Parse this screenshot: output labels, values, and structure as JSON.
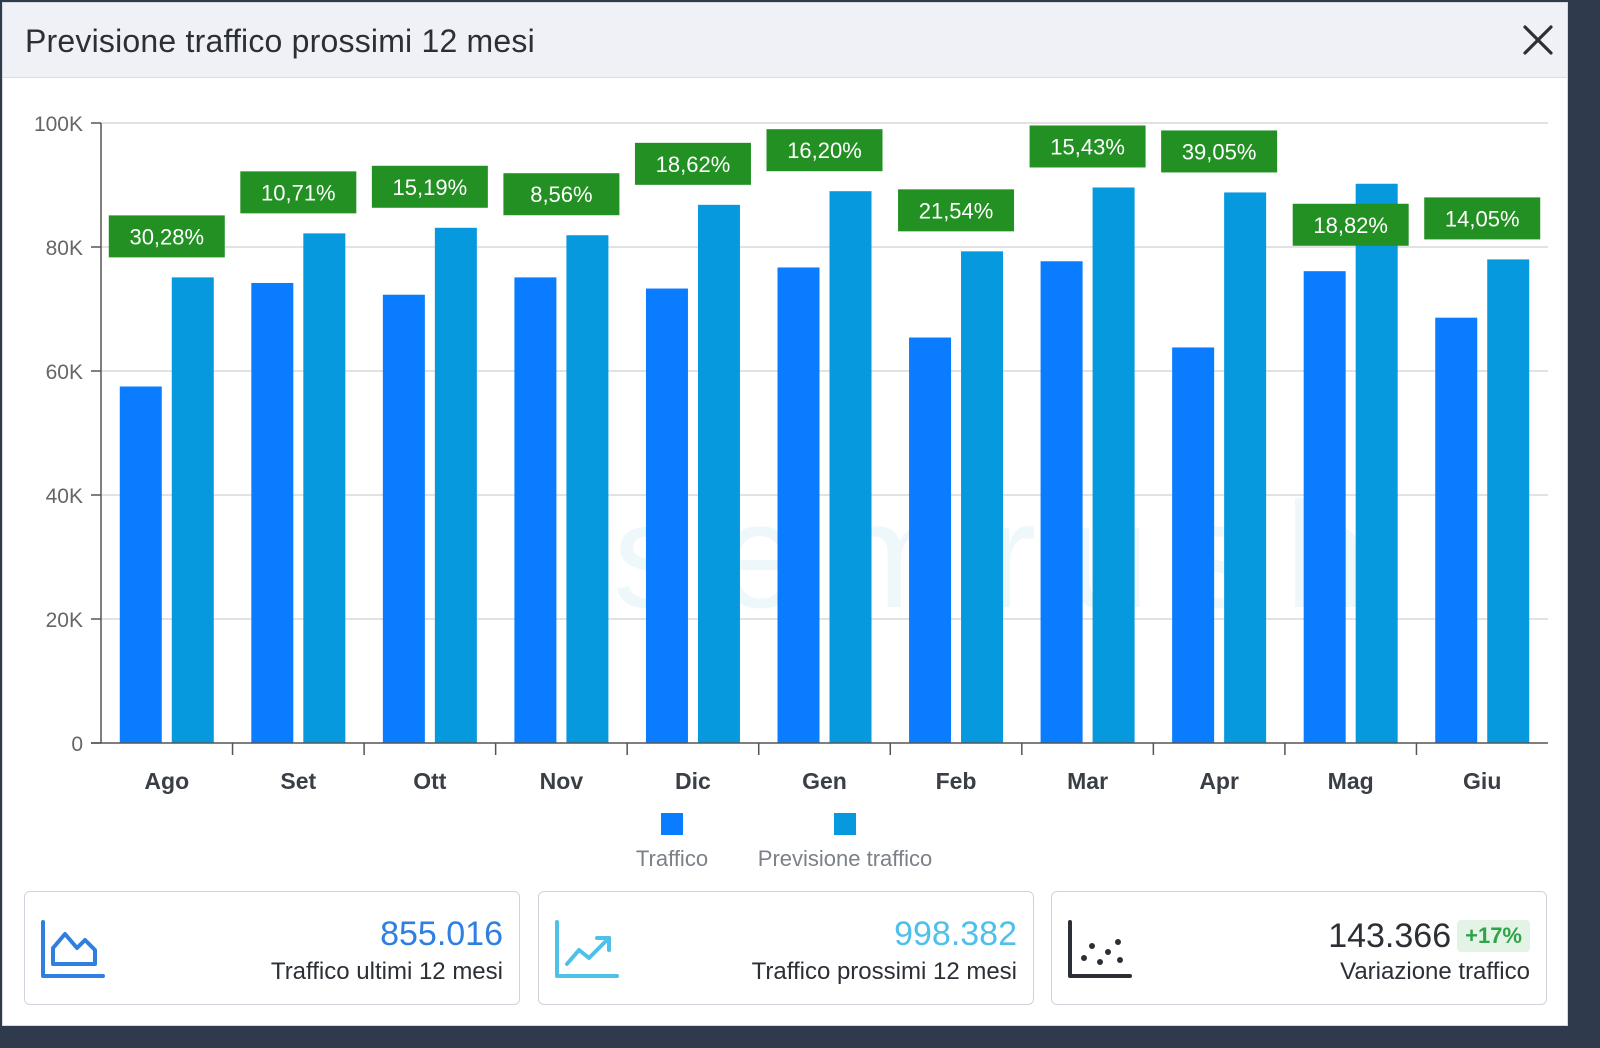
{
  "modal": {
    "title": "Previsione traffico prossimi 12 mesi",
    "close_icon": "close-icon"
  },
  "colors": {
    "traffic": "#0a7cff",
    "forecast": "#0699dd",
    "badge_bg": "#239023",
    "grid": "#d9d9d9"
  },
  "chart_data": {
    "type": "bar",
    "title": "Previsione traffico prossimi 12 mesi",
    "categories": [
      "Ago",
      "Set",
      "Ott",
      "Nov",
      "Dic",
      "Gen",
      "Feb",
      "Mar",
      "Apr",
      "Mag",
      "Giu"
    ],
    "series": [
      {
        "name": "Traffico",
        "values": [
          57500,
          74200,
          72300,
          75100,
          73300,
          76700,
          65400,
          77700,
          63800,
          76100,
          68600
        ]
      },
      {
        "name": "Previsione traffico",
        "values": [
          75100,
          82200,
          83100,
          81900,
          86800,
          89000,
          79300,
          89600,
          88800,
          90200,
          78000
        ]
      }
    ],
    "change_labels": [
      "30,28%",
      "10,71%",
      "15,19%",
      "8,56%",
      "18,62%",
      "16,20%",
      "21,54%",
      "15,43%",
      "39,05%",
      "18,82%",
      "14,05%"
    ],
    "yticks": [
      0,
      20000,
      40000,
      60000,
      80000,
      100000
    ],
    "ytick_labels": [
      "0",
      "20K",
      "40K",
      "60K",
      "80K",
      "100K"
    ],
    "ylim": [
      0,
      100000
    ],
    "xlabel": "",
    "ylabel": "",
    "grid": true,
    "legend": "bottom-center"
  },
  "summary": {
    "past": {
      "value": "855.016",
      "label": "Traffico ultimi 12 mesi",
      "icon": "area-chart-icon",
      "color": "#2f7fe0"
    },
    "future": {
      "value": "998.382",
      "label": "Traffico prossimi 12 mesi",
      "icon": "trending-up-icon",
      "color": "#4fc0ea"
    },
    "change": {
      "value": "143.366",
      "badge": "+17%",
      "label": "Variazione traffico",
      "icon": "scatter-chart-icon",
      "color": "#2b2f36"
    }
  }
}
